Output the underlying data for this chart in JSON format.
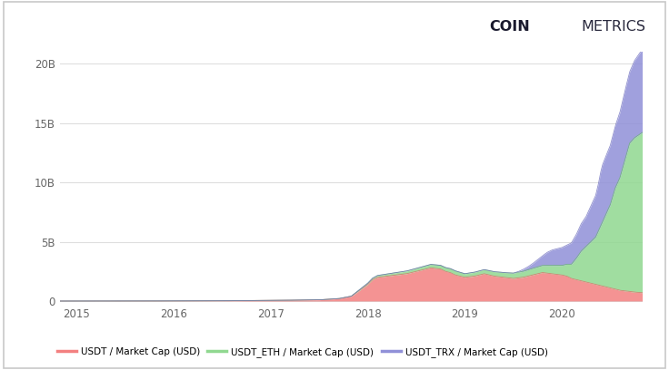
{
  "background_color": "#ffffff",
  "border_color": "#cccccc",
  "grid_color": "#dedede",
  "xlim": [
    2014.83,
    2020.83
  ],
  "ylim": [
    -200000000.0,
    21000000000.0
  ],
  "yticks": [
    0,
    5000000000.0,
    10000000000.0,
    15000000000.0,
    20000000000.0
  ],
  "ytick_labels": [
    "0",
    "5B",
    "10B",
    "15B",
    "20B"
  ],
  "xtick_labels": [
    "2015",
    "2016",
    "2017",
    "2018",
    "2019",
    "2020"
  ],
  "xtick_values": [
    2015,
    2016,
    2017,
    2018,
    2019,
    2020
  ],
  "legend_labels": [
    "USDT / Market Cap (USD)",
    "USDT_ETH / Market Cap (USD)",
    "USDT_TRX / Market Cap (USD)"
  ],
  "colors": {
    "usdt_fill": "#f38080",
    "usdt_line": "#e06060",
    "eth_fill": "#90d890",
    "eth_line": "#60b860",
    "trx_fill": "#9090d8",
    "trx_line": "#6060b8"
  },
  "usdt_data": {
    "x": [
      2014.83,
      2015.0,
      2015.5,
      2016.0,
      2016.5,
      2017.0,
      2017.3,
      2017.5,
      2017.7,
      2017.83,
      2017.9,
      2018.0,
      2018.05,
      2018.1,
      2018.2,
      2018.3,
      2018.4,
      2018.5,
      2018.6,
      2018.65,
      2018.7,
      2018.75,
      2018.8,
      2018.85,
      2018.9,
      2019.0,
      2019.1,
      2019.15,
      2019.2,
      2019.3,
      2019.4,
      2019.5,
      2019.6,
      2019.7,
      2019.8,
      2019.9,
      2020.0,
      2020.05,
      2020.1,
      2020.15,
      2020.2,
      2020.25,
      2020.3,
      2020.35,
      2020.4,
      2020.45,
      2020.5,
      2020.55,
      2020.6,
      2020.65,
      2020.7,
      2020.75,
      2020.83
    ],
    "y": [
      0,
      0,
      5000000.0,
      10000000.0,
      20000000.0,
      50000000.0,
      80000000.0,
      100000000.0,
      200000000.0,
      400000000.0,
      800000000.0,
      1400000000.0,
      1800000000.0,
      2000000000.0,
      2100000000.0,
      2200000000.0,
      2300000000.0,
      2500000000.0,
      2700000000.0,
      2800000000.0,
      2750000000.0,
      2700000000.0,
      2500000000.0,
      2400000000.0,
      2200000000.0,
      2000000000.0,
      2100000000.0,
      2200000000.0,
      2300000000.0,
      2100000000.0,
      2000000000.0,
      1900000000.0,
      2000000000.0,
      2200000000.0,
      2400000000.0,
      2300000000.0,
      2200000000.0,
      2100000000.0,
      1900000000.0,
      1800000000.0,
      1700000000.0,
      1600000000.0,
      1500000000.0,
      1400000000.0,
      1300000000.0,
      1200000000.0,
      1100000000.0,
      1000000000.0,
      900000000.0,
      850000000.0,
      800000000.0,
      750000000.0,
      700000000.0
    ]
  },
  "eth_data": {
    "x": [
      2014.83,
      2017.83,
      2017.9,
      2018.0,
      2018.1,
      2018.3,
      2018.5,
      2018.7,
      2018.9,
      2019.0,
      2019.2,
      2019.4,
      2019.6,
      2019.8,
      2020.0,
      2020.1,
      2020.15,
      2020.2,
      2020.25,
      2020.3,
      2020.35,
      2020.4,
      2020.45,
      2020.5,
      2020.55,
      2020.6,
      2020.65,
      2020.7,
      2020.75,
      2020.83
    ],
    "y": [
      0,
      0,
      50000000.0,
      100000000.0,
      150000000.0,
      200000000.0,
      250000000.0,
      300000000.0,
      350000000.0,
      300000000.0,
      350000000.0,
      400000000.0,
      500000000.0,
      600000000.0,
      800000000.0,
      1200000000.0,
      1800000000.0,
      2500000000.0,
      3000000000.0,
      3500000000.0,
      4000000000.0,
      5000000000.0,
      6000000000.0,
      7000000000.0,
      8500000000.0,
      9500000000.0,
      11000000000.0,
      12500000000.0,
      13000000000.0,
      13500000000.0
    ]
  },
  "trx_data": {
    "x": [
      2014.83,
      2019.5,
      2019.55,
      2019.6,
      2019.65,
      2019.7,
      2019.75,
      2019.8,
      2019.85,
      2019.9,
      2020.0,
      2020.05,
      2020.1,
      2020.15,
      2020.2,
      2020.25,
      2020.3,
      2020.35,
      2020.38,
      2020.4,
      2020.42,
      2020.45,
      2020.5,
      2020.55,
      2020.6,
      2020.65,
      2020.7,
      2020.75,
      2020.83
    ],
    "y": [
      0,
      0,
      50000000.0,
      150000000.0,
      250000000.0,
      400000000.0,
      600000000.0,
      800000000.0,
      1100000000.0,
      1300000000.0,
      1500000000.0,
      1600000000.0,
      1800000000.0,
      2000000000.0,
      2300000000.0,
      2500000000.0,
      3000000000.0,
      3500000000.0,
      4000000000.0,
      4500000000.0,
      4800000000.0,
      4900000000.0,
      5000000000.0,
      5200000000.0,
      5500000000.0,
      5800000000.0,
      6000000000.0,
      6500000000.0,
      7000000000.0
    ]
  }
}
